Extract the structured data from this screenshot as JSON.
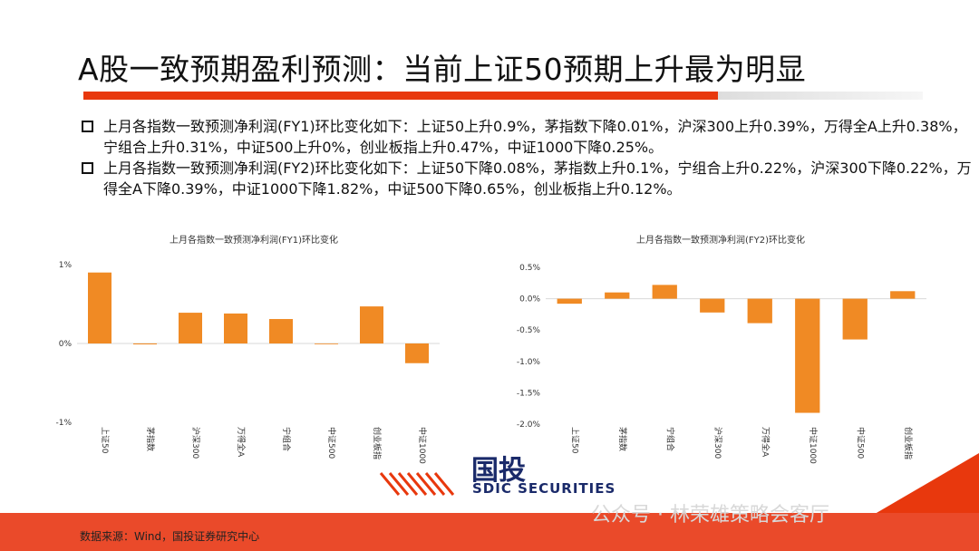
{
  "title": "A股一致预期盈利预测：当前上证50预期上升最为明显",
  "bullets": [
    "上月各指数一致预测净利润(FY1)环比变化如下：上证50上升0.9%，茅指数下降0.01%，沪深300上升0.39%，万得全A上升0.38%，宁组合上升0.31%，中证500上升0%，创业板指上升0.47%，中证1000下降0.25%。",
    "上月各指数一致预测净利润(FY2)环比变化如下：上证50下降0.08%，茅指数上升0.1%，宁组合上升0.22%，沪深300下降0.22%，万得全A下降0.39%，中证1000下降1.82%，中证500下降0.65%，创业板指上升0.12%。"
  ],
  "chart_data": [
    {
      "type": "bar",
      "title": "上月各指数一致预测净利润(FY1)环比变化",
      "categories": [
        "上证50",
        "茅指数",
        "沪深300",
        "万得全A",
        "宁组合",
        "中证500",
        "创业板指",
        "中证1000"
      ],
      "values": [
        0.9,
        -0.01,
        0.39,
        0.38,
        0.31,
        0,
        0.47,
        -0.25
      ],
      "ylim": [
        -1,
        1
      ],
      "yticks": [
        1,
        0,
        -1
      ],
      "ytick_labels": [
        "1%",
        "0%",
        "-1%"
      ],
      "color": "#f08a24",
      "grid": false
    },
    {
      "type": "bar",
      "title": "上月各指数一致预测净利润(FY2)环比变化",
      "categories": [
        "上证50",
        "茅指数",
        "宁组合",
        "沪深300",
        "万得全A",
        "中证1000",
        "中证500",
        "创业板指"
      ],
      "values": [
        -0.08,
        0.1,
        0.22,
        -0.22,
        -0.39,
        -1.82,
        -0.65,
        0.12
      ],
      "ylim": [
        -2,
        0.5
      ],
      "yticks": [
        0.5,
        0,
        -0.5,
        -1,
        -1.5,
        -2
      ],
      "ytick_labels": [
        "0.5%",
        "0.0%",
        "-0.5%",
        "-1.0%",
        "-1.5%",
        "-2.0%"
      ],
      "color": "#f08a24",
      "grid": false
    }
  ],
  "logo": {
    "text": "国投",
    "sub": "SDIC SECURITIES"
  },
  "watermark": "公众号 · 林荣雄策略会客厅",
  "source": "数据来源：Wind，国投证券研究中心",
  "colors": {
    "accent": "#e8380d",
    "bar": "#f08a24",
    "brand": "#1a2a6a"
  }
}
